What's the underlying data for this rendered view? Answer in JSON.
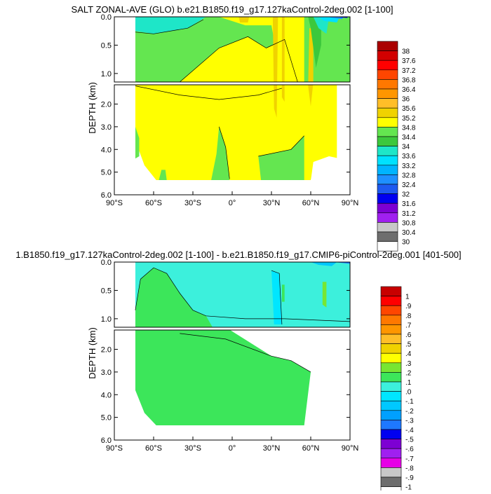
{
  "chart_data": [
    {
      "type": "contour",
      "title": "SALT ZONAL-AVE (GLO) b.e21.B1850.f19_g17.127kaControl-2deg.002 [1-100]",
      "xlabel": "",
      "ylabel": "DEPTH (km)",
      "x_ticks": [
        "90°S",
        "60°S",
        "30°S",
        "0°",
        "30°N",
        "60°N",
        "90°N"
      ],
      "upper_y_ticks": [
        "0.0",
        "0.5",
        "1.0"
      ],
      "lower_y_ticks": [
        "2.0",
        "3.0",
        "4.0",
        "5.0",
        "6.0"
      ],
      "xlim": [
        -90,
        90
      ],
      "ylim_upper_km": [
        0,
        1.15
      ],
      "ylim_lower_km": [
        1.15,
        6.0
      ],
      "levels": [
        "30",
        "30.4",
        "30.8",
        "31.2",
        "31.6",
        "32",
        "32.4",
        "32.8",
        "33.2",
        "33.6",
        "34",
        "34.4",
        "34.8",
        "35.2",
        "35.6",
        "36",
        "36.4",
        "36.8",
        "37.2",
        "37.6",
        "38"
      ],
      "colors": [
        "#ffffff",
        "#6e6e6e",
        "#c8c8c8",
        "#a020f0",
        "#7d00d3",
        "#0000f0",
        "#1e5af0",
        "#1e90ff",
        "#00b4ff",
        "#00e1ff",
        "#1ee6c8",
        "#3cc83c",
        "#64e650",
        "#ffff00",
        "#f0d200",
        "#ffbe28",
        "#ff9600",
        "#ff7800",
        "#ff4600",
        "#ff0000",
        "#d20000",
        "#aa0000"
      ],
      "legend_position": "right"
    },
    {
      "type": "contour",
      "title": "1.B1850.f19_g17.127kaControl-2deg.002 [1-100] - b.e21.B1850.f19_g17.CMIP6-piControl-2deg.001 [401-500]",
      "xlabel": "",
      "ylabel": "DEPTH (km)",
      "x_ticks": [
        "90°S",
        "60°S",
        "30°S",
        "0°",
        "30°N",
        "60°N",
        "90°N"
      ],
      "upper_y_ticks": [
        "0.0",
        "0.5",
        "1.0"
      ],
      "lower_y_ticks": [
        "2.0",
        "3.0",
        "4.0",
        "5.0",
        "6.0"
      ],
      "xlim": [
        -90,
        90
      ],
      "ylim_upper_km": [
        0,
        1.15
      ],
      "ylim_lower_km": [
        1.15,
        6.0
      ],
      "levels": [
        "-1",
        "-.9",
        "-.8",
        "-.7",
        "-.6",
        "-.5",
        "-.4",
        "-.3",
        "-.2",
        "-.1",
        ".0",
        ".1",
        ".2",
        ".3",
        ".4",
        ".5",
        ".6",
        ".7",
        ".8",
        ".9",
        "1"
      ],
      "colors": [
        "#ffffff",
        "#6e6e6e",
        "#c8c8c8",
        "#e600e6",
        "#a020f0",
        "#7d00d3",
        "#0000f0",
        "#1e78ff",
        "#00a0ff",
        "#00c8ff",
        "#00e6ff",
        "#3cf0dc",
        "#3ce65a",
        "#78e632",
        "#ffff00",
        "#f0d200",
        "#ffbe28",
        "#ff9600",
        "#ff7800",
        "#ff4600",
        "#ff0000",
        "#c80000"
      ],
      "legend_position": "right"
    }
  ]
}
